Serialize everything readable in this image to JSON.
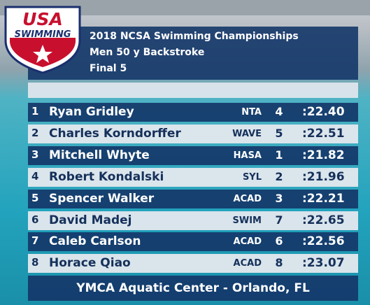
{
  "logo": {
    "line1": "USA",
    "line2": "SWIMMING"
  },
  "header": {
    "title": "2018 NCSA Swimming Championships",
    "event": "Men 50 y Backstroke",
    "heat": "Final 5"
  },
  "table": {
    "rows": [
      {
        "place": "1",
        "name": "Ryan Gridley",
        "team": "NTA",
        "lane": "4",
        "time": ":22.40"
      },
      {
        "place": "2",
        "name": "Charles Korndorffer",
        "team": "WAVE",
        "lane": "5",
        "time": ":22.51"
      },
      {
        "place": "3",
        "name": "Mitchell Whyte",
        "team": "HASA",
        "lane": "1",
        "time": ":21.82"
      },
      {
        "place": "4",
        "name": "Robert Kondalski",
        "team": "SYL",
        "lane": "2",
        "time": ":21.96"
      },
      {
        "place": "5",
        "name": "Spencer Walker",
        "team": "ACAD",
        "lane": "3",
        "time": ":22.21"
      },
      {
        "place": "6",
        "name": "David Madej",
        "team": "SWIM",
        "lane": "7",
        "time": ":22.65"
      },
      {
        "place": "7",
        "name": "Caleb Carlson",
        "team": "ACAD",
        "lane": "6",
        "time": ":22.56"
      },
      {
        "place": "8",
        "name": "Horace Qiao",
        "team": "ACAD",
        "lane": "8",
        "time": ":23.07"
      }
    ]
  },
  "footer": {
    "venue": "YMCA Aquatic Center - Orlando, FL"
  }
}
